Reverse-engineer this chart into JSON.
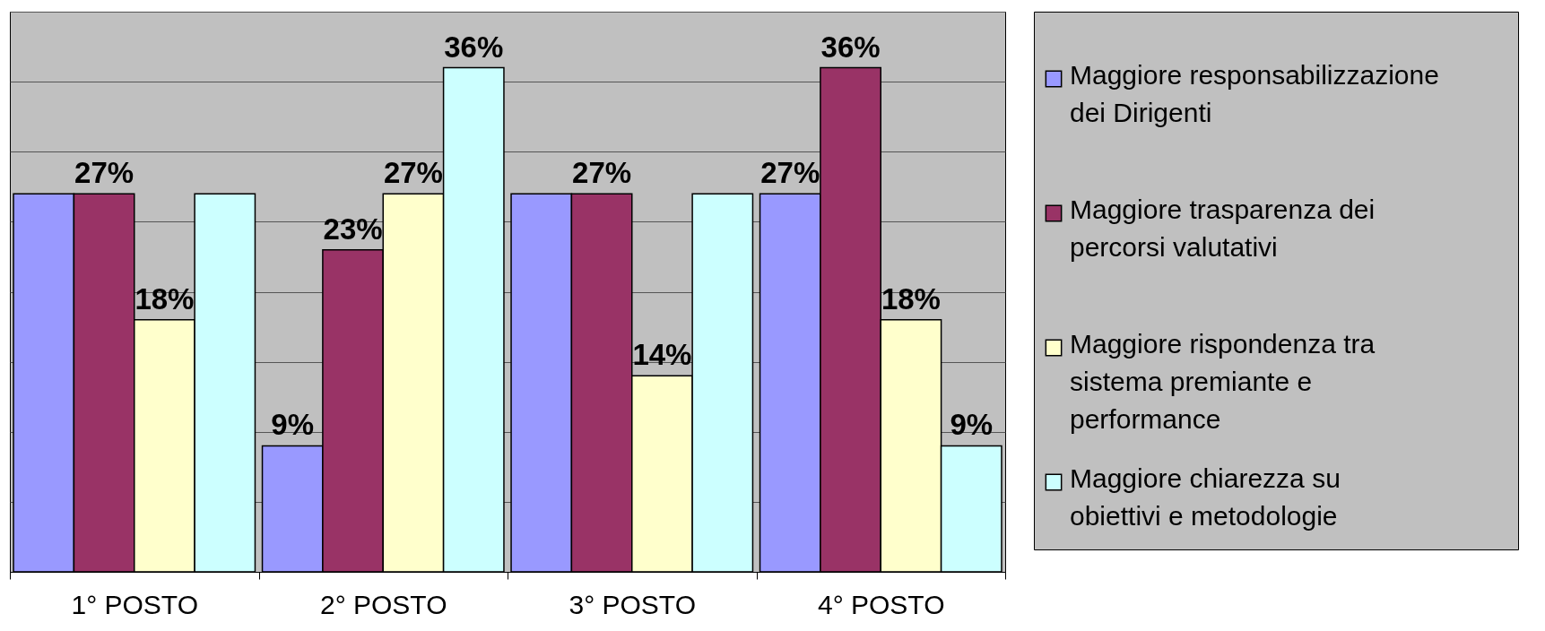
{
  "chart_data": {
    "type": "bar",
    "categories": [
      "1° POSTO",
      "2° POSTO",
      "3° POSTO",
      "4° POSTO"
    ],
    "series": [
      {
        "name": "Maggiore responsabilizzazione dei Dirigenti",
        "color": "#9999ff",
        "values": [
          27,
          9,
          27,
          27
        ],
        "value_labels": [
          null,
          "9%",
          null,
          "27%"
        ]
      },
      {
        "name": "Maggiore trasparenza dei percorsi valutativi",
        "color": "#993366",
        "values": [
          27,
          23,
          27,
          36
        ],
        "value_labels": [
          "27%",
          "23%",
          "27%",
          "36%"
        ]
      },
      {
        "name": "Maggiore rispondenza tra sistema premiante e performance",
        "color": "#ffffcc",
        "values": [
          18,
          27,
          14,
          18
        ],
        "value_labels": [
          "18%",
          "27%",
          "14%",
          "18%"
        ]
      },
      {
        "name": "Maggiore chiarezza su obiettivi e metodologie",
        "color": "#ccffff",
        "values": [
          27,
          36,
          27,
          9
        ],
        "value_labels": [
          null,
          "36%",
          null,
          "9%"
        ]
      }
    ],
    "ylim": [
      0,
      40
    ],
    "yticks": [
      0,
      5,
      10,
      15,
      20,
      25,
      30,
      35,
      40
    ],
    "grid": "y",
    "tick_labels": "x",
    "legend": "right"
  }
}
